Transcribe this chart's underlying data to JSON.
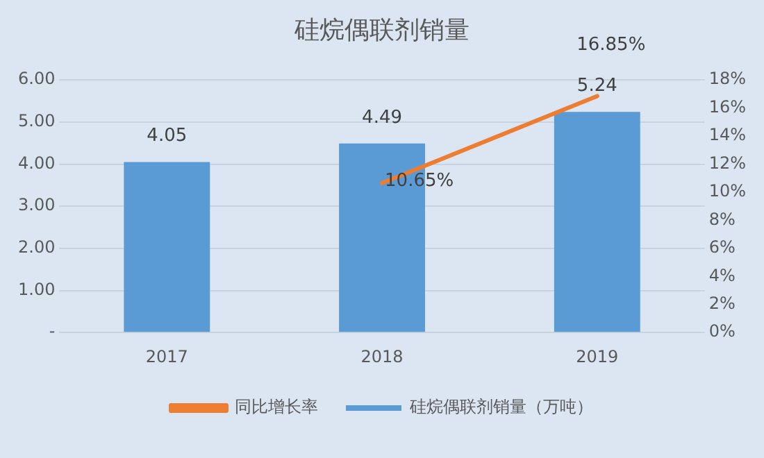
{
  "chart_data": {
    "type": "bar",
    "title": "硅烷偶联剂销量",
    "categories": [
      "2017",
      "2018",
      "2019"
    ],
    "series": [
      {
        "name": "硅烷偶联剂销量（万吨）",
        "color": "#5b9bd5",
        "values": [
          4.05,
          4.49,
          5.24
        ],
        "value_labels": [
          "4.05",
          "4.49",
          "5.24"
        ]
      },
      {
        "name": "同比增长率",
        "type": "line",
        "axis": "y2",
        "color": "#ed7d31",
        "values": [
          null,
          10.65,
          16.85
        ],
        "value_labels": [
          null,
          "10.65%",
          "16.85%"
        ],
        "marker": "none"
      }
    ],
    "ylim": [
      0,
      6
    ],
    "yticks": [
      {
        "value": 0,
        "label": "-"
      },
      {
        "value": 1,
        "label": "1.00"
      },
      {
        "value": 2,
        "label": "2.00"
      },
      {
        "value": 3,
        "label": "3.00"
      },
      {
        "value": 4,
        "label": "4.00"
      },
      {
        "value": 5,
        "label": "5.00"
      },
      {
        "value": 6,
        "label": "6.00"
      }
    ],
    "y2lim": [
      0,
      18
    ],
    "y2ticks": [
      {
        "value": 0,
        "label": "0%"
      },
      {
        "value": 2,
        "label": "2%"
      },
      {
        "value": 4,
        "label": "4%"
      },
      {
        "value": 6,
        "label": "6%"
      },
      {
        "value": 8,
        "label": "8%"
      },
      {
        "value": 10,
        "label": "10%"
      },
      {
        "value": 12,
        "label": "12%"
      },
      {
        "value": 14,
        "label": "14%"
      },
      {
        "value": 16,
        "label": "16%"
      },
      {
        "value": 18,
        "label": "18%"
      }
    ],
    "grid": "y",
    "legend": "bottom"
  }
}
